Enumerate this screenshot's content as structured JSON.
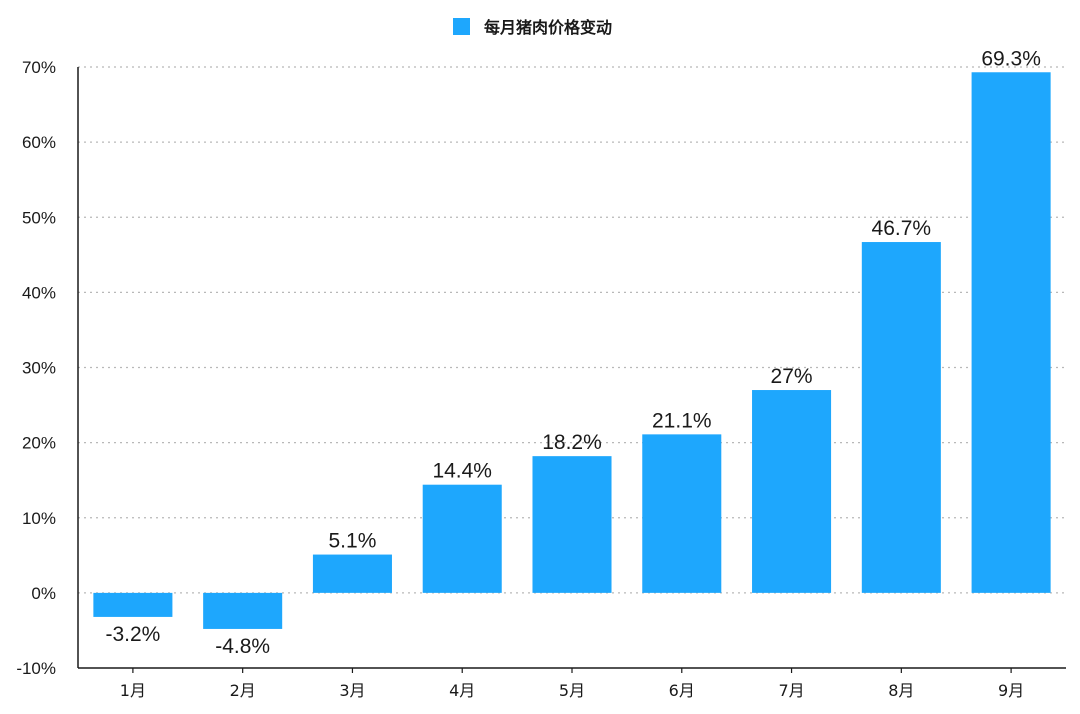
{
  "chart_data": {
    "type": "bar",
    "categories": [
      "1月",
      "2月",
      "3月",
      "4月",
      "5月",
      "6月",
      "7月",
      "8月",
      "9月"
    ],
    "series": [
      {
        "name": "每月猪肉价格变动",
        "values": [
          -3.2,
          -4.8,
          5.1,
          14.4,
          18.2,
          21.1,
          27,
          46.7,
          69.3
        ],
        "labels": [
          "-3.2%",
          "-4.8%",
          "5.1%",
          "14.4%",
          "18.2%",
          "21.1%",
          "27%",
          "46.7%",
          "69.3%"
        ]
      }
    ],
    "ylim": [
      -10,
      70
    ],
    "yticks": [
      -10,
      0,
      10,
      20,
      30,
      40,
      50,
      60,
      70
    ],
    "ytick_labels": [
      "-10%",
      "0%",
      "10%",
      "20%",
      "30%",
      "40%",
      "50%",
      "60%",
      "70%"
    ],
    "grid": true,
    "legend_position": "top-center",
    "colors": {
      "bar": "#1ea7fd",
      "grid": "#b8b8b8",
      "axis": "#1a1a1a",
      "text": "#1a1a1a"
    }
  }
}
